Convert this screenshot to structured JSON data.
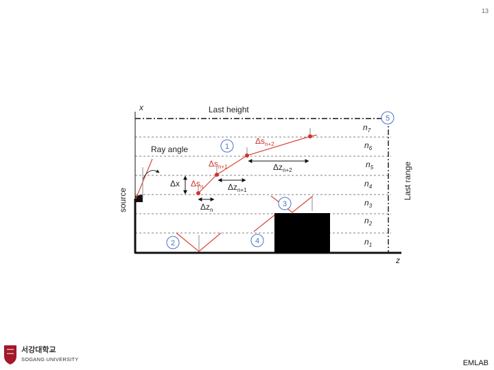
{
  "page_number": "13",
  "diagram": {
    "x_axis_label": "x",
    "z_axis_label": "z",
    "last_height": "Last height",
    "last_range": "Last range",
    "source": "source",
    "ray_angle": "Ray angle",
    "circles": [
      "1",
      "2",
      "3",
      "4",
      "5"
    ],
    "layers": [
      {
        "base": "n",
        "sub": "7"
      },
      {
        "base": "n",
        "sub": "6"
      },
      {
        "base": "n",
        "sub": "5"
      },
      {
        "base": "n",
        "sub": "4"
      },
      {
        "base": "n",
        "sub": "3"
      },
      {
        "base": "n",
        "sub": "2"
      },
      {
        "base": "n",
        "sub": "1"
      }
    ],
    "delta_x": "Δx",
    "delta_s": [
      {
        "base": "Δs",
        "sub": "n"
      },
      {
        "base": "Δs",
        "sub": "n+1"
      },
      {
        "base": "Δs",
        "sub": "n+2"
      }
    ],
    "delta_z": [
      {
        "base": "Δz",
        "sub": "n"
      },
      {
        "base": "Δz",
        "sub": "n+1"
      },
      {
        "base": "Δz",
        "sub": "n+2"
      }
    ]
  },
  "footer": {
    "university_korean": "서강대학교",
    "university_english": "SOGANG UNIVERSITY",
    "lab": "EMLAB"
  }
}
